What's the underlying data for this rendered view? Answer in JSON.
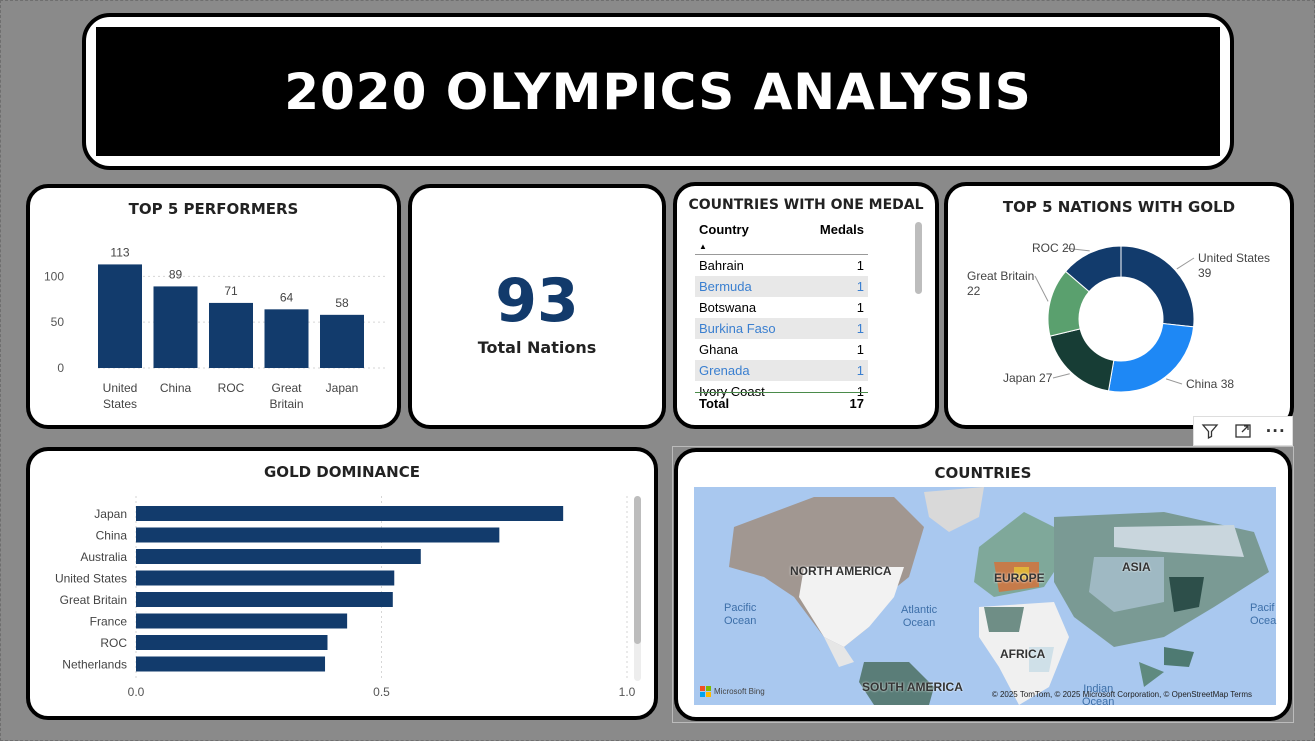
{
  "title": "2020 OLYMPICS ANALYSIS",
  "colors": {
    "navy": "#123a6b",
    "bar": "#123b6c",
    "blue": "#1e88f5",
    "green": "#5aa06e",
    "darkgreen": "#173d35"
  },
  "top5": {
    "title": "TOP 5 PERFORMERS",
    "chart_data": {
      "type": "bar",
      "categories": [
        "United States",
        "China",
        "ROC",
        "Great Britain",
        "Japan"
      ],
      "category_lines": [
        [
          "United",
          "States"
        ],
        [
          "China"
        ],
        [
          "ROC"
        ],
        [
          "Great",
          "Britain"
        ],
        [
          "Japan"
        ]
      ],
      "values": [
        113,
        89,
        71,
        64,
        58
      ],
      "yticks": [
        0,
        50,
        100
      ],
      "ylim": [
        0,
        120
      ]
    }
  },
  "kpi": {
    "value": "93",
    "label": "Total Nations"
  },
  "onemedal": {
    "title": "COUNTRIES WITH ONE MEDAL",
    "col_country": "Country",
    "col_medals": "Medals",
    "rows": [
      {
        "country": "Bahrain",
        "medals": "1"
      },
      {
        "country": "Bermuda",
        "medals": "1"
      },
      {
        "country": "Botswana",
        "medals": "1"
      },
      {
        "country": "Burkina Faso",
        "medals": "1"
      },
      {
        "country": "Ghana",
        "medals": "1"
      },
      {
        "country": "Grenada",
        "medals": "1"
      },
      {
        "country": "Ivory Coast",
        "medals": "1"
      }
    ],
    "total_label": "Total",
    "total_value": "17"
  },
  "gold5": {
    "title": "TOP 5 NATIONS WITH GOLD",
    "chart_data": {
      "type": "pie",
      "categories": [
        "United States",
        "China",
        "Japan",
        "Great Britain",
        "ROC"
      ],
      "values": [
        39,
        38,
        27,
        22,
        20
      ],
      "colors": [
        "#123b6c",
        "#1e88f5",
        "#173d35",
        "#5aa06e",
        "#123b6c"
      ],
      "label_lines": [
        [
          "United States",
          "39"
        ],
        [
          "China 38"
        ],
        [
          "Japan 27"
        ],
        [
          "Great Britain",
          "22"
        ],
        [
          "ROC 20"
        ]
      ]
    }
  },
  "gold_dom": {
    "title": "GOLD DOMINANCE",
    "chart_data": {
      "type": "bar",
      "orientation": "horizontal",
      "categories": [
        "Japan",
        "China",
        "Australia",
        "United States",
        "Great Britain",
        "France",
        "ROC",
        "Netherlands"
      ],
      "values": [
        0.87,
        0.74,
        0.58,
        0.526,
        0.523,
        0.43,
        0.39,
        0.385
      ],
      "xticks": [
        "0.0",
        "0.5",
        "1.0"
      ],
      "xlim": [
        0,
        1
      ]
    }
  },
  "map": {
    "title": "COUNTRIES",
    "labels": [
      "NORTH AMERICA",
      "EUROPE",
      "ASIA",
      "AFRICA",
      "SOUTH AMERICA"
    ],
    "oceans": [
      [
        "Pacific",
        "Ocean"
      ],
      [
        "Atlantic",
        "Ocean"
      ],
      [
        "Indian",
        "Ocean"
      ],
      [
        "Pacif",
        "Ocea"
      ]
    ],
    "credit": "© 2025 TomTom, © 2025 Microsoft Corporation, © OpenStreetMap  Terms",
    "bing": "Microsoft Bing"
  },
  "toolbar": {
    "filter": "filter-icon",
    "focus": "focus-mode-icon",
    "more": "more-options-icon"
  }
}
